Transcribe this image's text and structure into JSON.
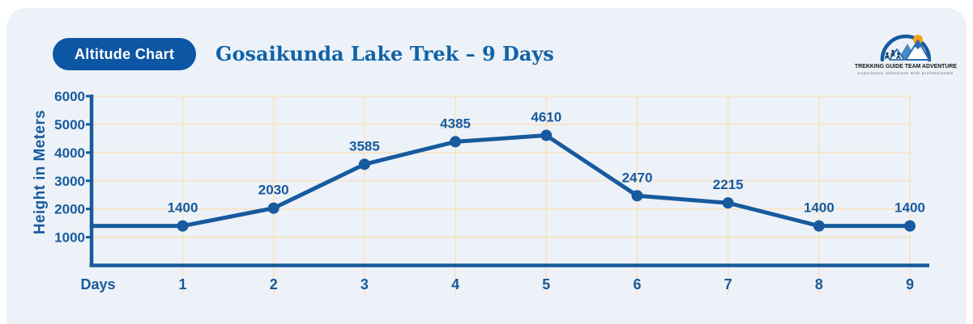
{
  "page": {
    "background": "#ffffff",
    "card_background": "#edf2f8",
    "accent_blue": "#175a9e",
    "grid_color": "#f8e3c4"
  },
  "header": {
    "badge_label": "Altitude Chart",
    "title": "Gosaikunda Lake Trek – 9 Days"
  },
  "logo": {
    "name": "TREKKING GUIDE TEAM ADVENTURE",
    "tagline": "experience adventure with professionals",
    "arch_color": "#155a9e",
    "sun_color": "#f2a11d"
  },
  "chart_data": {
    "type": "line",
    "title": "Gosaikunda Lake Trek – 9 Days",
    "xlabel": "Days",
    "ylabel": "Height in Meters",
    "x": [
      1,
      2,
      3,
      4,
      5,
      6,
      7,
      8,
      9
    ],
    "values": [
      1400,
      2030,
      3585,
      4385,
      4610,
      2470,
      2215,
      1400,
      1400
    ],
    "ylim": [
      0,
      6000
    ],
    "yticks": [
      1000,
      2000,
      3000,
      4000,
      5000,
      6000
    ],
    "grid": true,
    "legend": "none",
    "line_color": "#175a9e",
    "marker_color": "#175a9e",
    "grid_color": "#f8e3c4",
    "label_color": "#175a9e"
  }
}
